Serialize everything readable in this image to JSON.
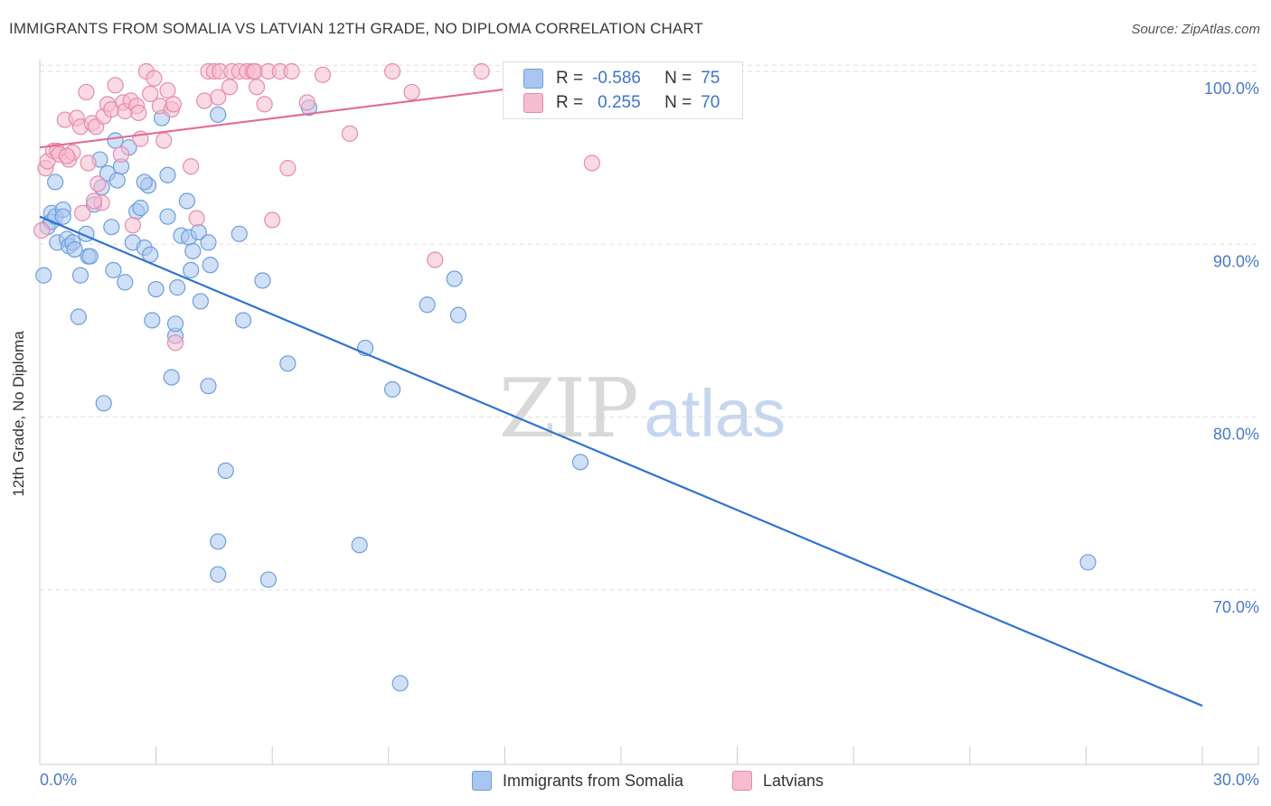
{
  "title": "IMMIGRANTS FROM SOMALIA VS LATVIAN 12TH GRADE, NO DIPLOMA CORRELATION CHART",
  "source": "Source: ZipAtlas.com",
  "watermark": {
    "zip": "ZIP",
    "atlas": "atlas"
  },
  "legend": {
    "rows": [
      {
        "r_label": "R =",
        "r_value": "-0.586",
        "n_label": "N =",
        "n_value": "75"
      },
      {
        "r_label": "R =",
        "r_value": "0.255",
        "n_label": "N =",
        "n_value": "70"
      }
    ]
  },
  "bottom_legend": [
    "Immigrants from Somalia",
    "Latvians"
  ],
  "colors": {
    "somalia_fill": "#a9c6f0",
    "somalia_stroke": "#6e9ddd",
    "somalia_line": "#2f74d0",
    "latvian_fill": "#f6bcd0",
    "latvian_stroke": "#e88aab",
    "latvian_line": "#e36b96",
    "grid": "#dddddd",
    "tick_label": "#4a7ac9"
  },
  "chart_data": {
    "type": "scatter",
    "title": "IMMIGRANTS FROM SOMALIA VS LATVIAN 12TH GRADE, NO DIPLOMA CORRELATION CHART",
    "xlabel": "",
    "ylabel": "12th Grade, No Diploma",
    "xlim": [
      0,
      30
    ],
    "ylim": [
      60,
      100.5
    ],
    "x_tick_labels": [
      "0.0%",
      "30.0%"
    ],
    "y_tick_labels": [
      "100.0%",
      "90.0%",
      "80.0%",
      "70.0%"
    ],
    "y_ticks": [
      100,
      90,
      80,
      70
    ],
    "grid": true,
    "legend_position": "top-center",
    "series": [
      {
        "name": "Immigrants from Somalia",
        "r": -0.586,
        "n": 75,
        "trend": {
          "x": [
            0,
            30
          ],
          "y": [
            91.6,
            63.3
          ]
        },
        "points": [
          [
            0.1,
            88.2
          ],
          [
            0.2,
            91.0
          ],
          [
            0.3,
            91.8
          ],
          [
            0.3,
            91.3
          ],
          [
            0.4,
            93.6
          ],
          [
            0.4,
            91.6
          ],
          [
            0.45,
            90.1
          ],
          [
            0.6,
            92.0
          ],
          [
            0.6,
            91.6
          ],
          [
            0.7,
            90.3
          ],
          [
            0.75,
            89.9
          ],
          [
            0.85,
            90.1
          ],
          [
            0.9,
            89.7
          ],
          [
            1.0,
            85.8
          ],
          [
            1.05,
            88.2
          ],
          [
            1.2,
            90.6
          ],
          [
            1.25,
            89.3
          ],
          [
            1.3,
            89.3
          ],
          [
            1.4,
            92.3
          ],
          [
            1.55,
            94.9
          ],
          [
            1.6,
            93.3
          ],
          [
            1.65,
            80.8
          ],
          [
            1.75,
            94.1
          ],
          [
            1.85,
            91.0
          ],
          [
            1.9,
            88.5
          ],
          [
            1.95,
            96.0
          ],
          [
            2.0,
            93.7
          ],
          [
            2.1,
            94.5
          ],
          [
            2.2,
            87.8
          ],
          [
            2.3,
            95.6
          ],
          [
            2.4,
            90.1
          ],
          [
            2.5,
            91.9
          ],
          [
            2.6,
            92.1
          ],
          [
            2.7,
            89.8
          ],
          [
            2.8,
            93.4
          ],
          [
            2.85,
            89.4
          ],
          [
            2.9,
            85.6
          ],
          [
            3.0,
            87.4
          ],
          [
            3.15,
            97.3
          ],
          [
            3.3,
            94.0
          ],
          [
            3.3,
            91.6
          ],
          [
            3.4,
            82.3
          ],
          [
            3.5,
            84.7
          ],
          [
            3.5,
            85.4
          ],
          [
            3.55,
            87.5
          ],
          [
            3.65,
            90.5
          ],
          [
            3.8,
            92.5
          ],
          [
            3.85,
            90.4
          ],
          [
            3.9,
            88.5
          ],
          [
            3.95,
            89.6
          ],
          [
            4.1,
            90.7
          ],
          [
            4.15,
            86.7
          ],
          [
            4.35,
            81.8
          ],
          [
            4.35,
            90.1
          ],
          [
            4.4,
            88.8
          ],
          [
            4.6,
            97.5
          ],
          [
            4.6,
            72.8
          ],
          [
            4.6,
            70.9
          ],
          [
            4.8,
            76.9
          ],
          [
            5.15,
            90.6
          ],
          [
            5.25,
            85.6
          ],
          [
            5.75,
            87.9
          ],
          [
            5.9,
            70.6
          ],
          [
            6.4,
            83.1
          ],
          [
            6.95,
            97.9
          ],
          [
            8.25,
            72.6
          ],
          [
            8.4,
            84.0
          ],
          [
            9.1,
            81.6
          ],
          [
            9.3,
            64.6
          ],
          [
            10.0,
            86.5
          ],
          [
            10.7,
            88.0
          ],
          [
            10.8,
            85.9
          ],
          [
            13.95,
            77.4
          ],
          [
            27.05,
            71.6
          ],
          [
            2.7,
            93.6
          ]
        ]
      },
      {
        "name": "Latvians",
        "r": 0.255,
        "n": 70,
        "trend": {
          "x": [
            0,
            15
          ],
          "y": [
            95.6,
            99.8
          ]
        },
        "points": [
          [
            0.05,
            90.8
          ],
          [
            0.15,
            94.4
          ],
          [
            0.2,
            94.8
          ],
          [
            0.35,
            95.4
          ],
          [
            0.45,
            95.4
          ],
          [
            0.5,
            95.2
          ],
          [
            0.65,
            97.2
          ],
          [
            0.75,
            94.9
          ],
          [
            0.85,
            95.3
          ],
          [
            0.95,
            97.3
          ],
          [
            1.05,
            96.8
          ],
          [
            1.1,
            91.8
          ],
          [
            1.2,
            98.8
          ],
          [
            1.25,
            94.7
          ],
          [
            1.35,
            97.0
          ],
          [
            1.45,
            96.8
          ],
          [
            1.5,
            93.5
          ],
          [
            1.6,
            92.4
          ],
          [
            1.65,
            97.4
          ],
          [
            1.75,
            98.1
          ],
          [
            1.85,
            97.8
          ],
          [
            1.95,
            99.2
          ],
          [
            2.1,
            95.2
          ],
          [
            2.15,
            98.2
          ],
          [
            2.2,
            97.7
          ],
          [
            2.35,
            98.3
          ],
          [
            2.4,
            91.1
          ],
          [
            2.5,
            98.0
          ],
          [
            2.55,
            97.6
          ],
          [
            2.6,
            96.1
          ],
          [
            2.75,
            100.0
          ],
          [
            2.85,
            98.7
          ],
          [
            2.95,
            99.6
          ],
          [
            3.1,
            98.0
          ],
          [
            3.2,
            96.0
          ],
          [
            3.3,
            98.9
          ],
          [
            3.4,
            97.8
          ],
          [
            3.45,
            98.1
          ],
          [
            3.5,
            84.3
          ],
          [
            3.9,
            94.5
          ],
          [
            4.05,
            91.5
          ],
          [
            4.25,
            98.3
          ],
          [
            4.35,
            100.0
          ],
          [
            4.5,
            100.0
          ],
          [
            4.6,
            98.5
          ],
          [
            4.65,
            100.0
          ],
          [
            4.9,
            99.1
          ],
          [
            4.95,
            100.0
          ],
          [
            5.15,
            100.0
          ],
          [
            5.35,
            100.0
          ],
          [
            5.5,
            100.0
          ],
          [
            5.55,
            100.0
          ],
          [
            5.6,
            99.1
          ],
          [
            5.8,
            98.1
          ],
          [
            5.9,
            100.0
          ],
          [
            6.0,
            91.4
          ],
          [
            6.2,
            100.0
          ],
          [
            6.4,
            94.4
          ],
          [
            6.5,
            100.0
          ],
          [
            6.9,
            98.2
          ],
          [
            7.3,
            99.8
          ],
          [
            8.0,
            96.4
          ],
          [
            9.1,
            100.0
          ],
          [
            9.6,
            98.8
          ],
          [
            10.2,
            89.1
          ],
          [
            11.4,
            100.0
          ],
          [
            14.25,
            94.7
          ],
          [
            13.6,
            100.0
          ],
          [
            0.7,
            95.1
          ],
          [
            1.4,
            92.5
          ]
        ]
      }
    ]
  }
}
